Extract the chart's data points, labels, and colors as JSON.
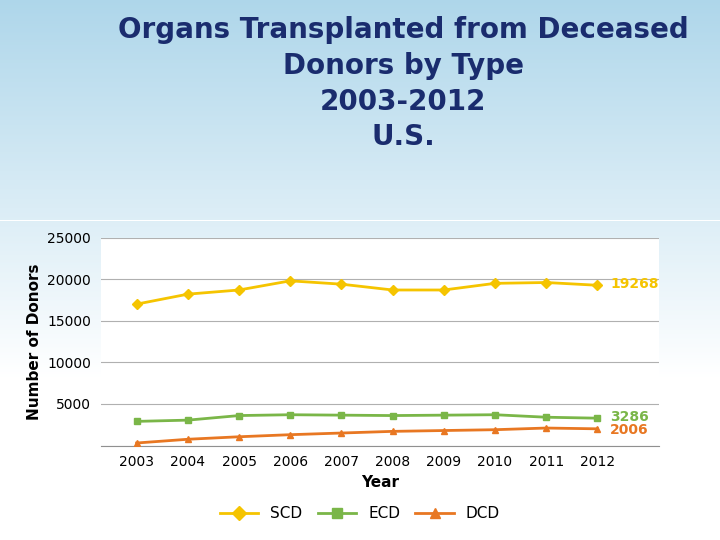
{
  "title_line1": "Organs Transplanted from Deceased",
  "title_line2": "Donors by Type",
  "title_line3": "2003-2012",
  "title_line4": "U.S.",
  "title_color": "#1a2c6e",
  "years": [
    2003,
    2004,
    2005,
    2006,
    2007,
    2008,
    2009,
    2010,
    2011,
    2012
  ],
  "SCD": [
    17000,
    18200,
    18700,
    19800,
    19400,
    18700,
    18700,
    19500,
    19600,
    19268
  ],
  "ECD": [
    2900,
    3050,
    3600,
    3700,
    3650,
    3600,
    3650,
    3700,
    3400,
    3286
  ],
  "DCD": [
    300,
    750,
    1050,
    1300,
    1500,
    1700,
    1800,
    1900,
    2100,
    2006
  ],
  "SCD_color": "#f5c400",
  "ECD_color": "#7ab648",
  "DCD_color": "#e87722",
  "ylabel": "Number of Donors",
  "xlabel": "Year",
  "ylim": [
    0,
    25000
  ],
  "yticks": [
    0,
    5000,
    10000,
    15000,
    20000,
    25000
  ],
  "annotation_SCD": "19268",
  "annotation_ECD": "3286",
  "annotation_DCD": "2006",
  "grid_color": "#b0b0b0",
  "title_fontsize": 20,
  "axis_fontsize": 11,
  "tick_fontsize": 10,
  "legend_fontsize": 11
}
